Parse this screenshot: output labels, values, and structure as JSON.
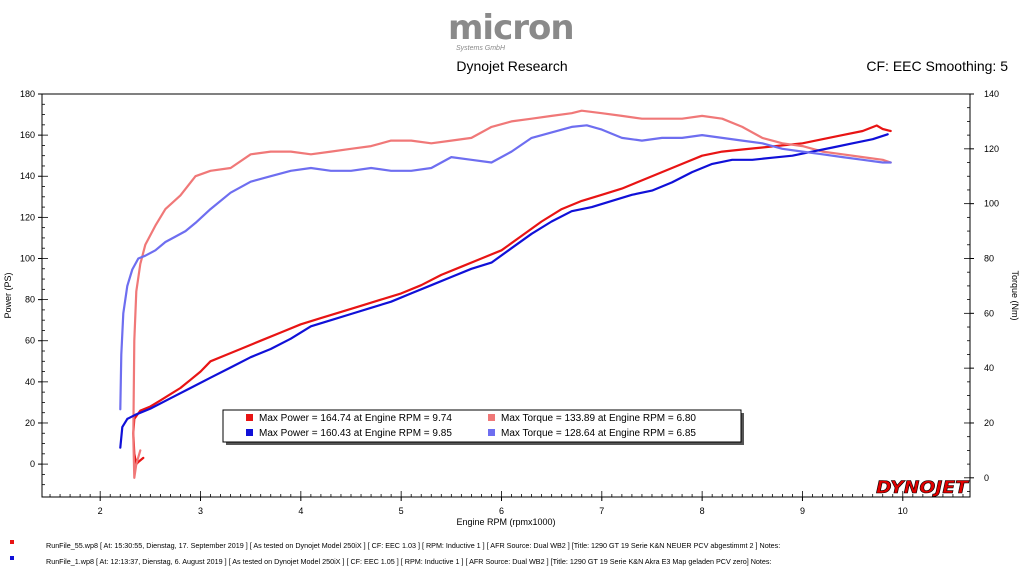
{
  "header": {
    "logo_text": "micron",
    "logo_sub": "Systems GmbH",
    "title": "Dynojet Research",
    "smoothing": "CF: EEC Smoothing: 5"
  },
  "brand": "DYNOJET",
  "colors": {
    "run1_power": "#e81414",
    "run1_torque": "#f07878",
    "run2_power": "#1010d8",
    "run2_torque": "#6e6ef0",
    "brand_red": "#e20000"
  },
  "runs": [
    {
      "color": "#e81414",
      "text": "RunFile_55.wp8  [ At: 15:30:55, Dienstag, 17. September 2019 ]  [ As tested on Dynojet Model 250iX ]  [ CF: EEC 1.03 ]  [ RPM: Inductive 1 ]  [ AFR Source: Dual WB2 ]  [Title: 1290 GT 19 Serie K&N NEUER PCV abgestimmt 2 ]  Notes:"
    },
    {
      "color": "#1010d8",
      "text": "RunFile_1.wp8  [ At: 12:13:37, Dienstag, 6. August 2019 ]  [ As tested on Dynojet Model 250iX ]  [ CF: EEC 1.05 ]  [ RPM: Inductive 1 ]  [ AFR Source: Dual WB2 ]  [Title: 1290 GT 19 Serie K&N Akra E3 Map geladen  PCV zero]  Notes:"
    }
  ],
  "chart_data": {
    "type": "line",
    "xlabel": "Engine RPM (rpmx1000)",
    "ylabel": "Power (PS)",
    "y2label": "Torque (Nm)",
    "xlim": [
      1.42,
      10.67
    ],
    "ylim": [
      -16,
      180
    ],
    "y2lim": [
      -7,
      140
    ],
    "xticks": [
      2,
      3,
      4,
      5,
      6,
      7,
      8,
      9,
      10
    ],
    "yticks": [
      0,
      20,
      40,
      60,
      80,
      100,
      120,
      140,
      160,
      180
    ],
    "y2ticks": [
      0,
      20,
      40,
      60,
      80,
      100,
      120,
      140
    ],
    "legend": [
      {
        "color": "#e81414",
        "label": "Max Power = 164.74 at Engine RPM = 9.74"
      },
      {
        "color": "#f07878",
        "label": "Max Torque = 133.89 at Engine RPM = 6.80"
      },
      {
        "color": "#1010d8",
        "label": "Max Power = 160.43 at Engine RPM = 9.85"
      },
      {
        "color": "#6e6ef0",
        "label": "Max Torque = 128.64 at Engine RPM = 6.85"
      }
    ],
    "series": [
      {
        "name": "Power run 1",
        "axis": "left",
        "color": "#e81414",
        "x": [
          2.43,
          2.38,
          2.36,
          2.34,
          2.33,
          2.34,
          2.4,
          2.5,
          2.6,
          2.7,
          2.8,
          2.9,
          3.0,
          3.1,
          3.25,
          3.4,
          3.6,
          3.8,
          4.0,
          4.2,
          4.4,
          4.6,
          4.8,
          5.0,
          5.2,
          5.4,
          5.6,
          5.8,
          6.0,
          6.2,
          6.4,
          6.6,
          6.8,
          7.0,
          7.2,
          7.4,
          7.6,
          7.8,
          8.0,
          8.2,
          8.4,
          8.6,
          8.8,
          9.0,
          9.2,
          9.4,
          9.6,
          9.74,
          9.8,
          9.88
        ],
        "y": [
          3,
          1,
          0,
          5,
          15,
          22,
          26,
          28,
          31,
          34,
          37,
          41,
          45,
          50,
          53,
          56,
          60,
          64,
          68,
          71,
          74,
          77,
          80,
          83,
          87,
          92,
          96,
          100,
          104,
          111,
          118,
          124,
          128,
          131,
          134,
          138,
          142,
          146,
          150,
          152,
          153,
          154,
          155,
          156,
          158,
          160,
          162,
          164.7,
          163,
          162
        ]
      },
      {
        "name": "Torque run 1",
        "axis": "right",
        "color": "#f07878",
        "x": [
          2.4,
          2.36,
          2.34,
          2.33,
          2.34,
          2.36,
          2.4,
          2.45,
          2.55,
          2.65,
          2.8,
          2.95,
          3.1,
          3.3,
          3.5,
          3.7,
          3.9,
          4.1,
          4.3,
          4.5,
          4.7,
          4.9,
          5.1,
          5.3,
          5.5,
          5.7,
          5.9,
          6.1,
          6.3,
          6.5,
          6.7,
          6.8,
          7.0,
          7.2,
          7.4,
          7.6,
          7.8,
          8.0,
          8.2,
          8.4,
          8.6,
          8.8,
          9.0,
          9.2,
          9.4,
          9.6,
          9.8,
          9.88
        ],
        "y": [
          10,
          5,
          0,
          15,
          50,
          68,
          78,
          85,
          92,
          98,
          103,
          110,
          112,
          113,
          118,
          119,
          119,
          118,
          119,
          120,
          121,
          123,
          123,
          122,
          123,
          124,
          128,
          130,
          131,
          132,
          133,
          133.9,
          133,
          132,
          131,
          131,
          131,
          132,
          131,
          128,
          124,
          122,
          121,
          119,
          118,
          117,
          116,
          115
        ]
      },
      {
        "name": "Power run 2",
        "axis": "left",
        "color": "#1010d8",
        "x": [
          2.2,
          2.22,
          2.27,
          2.35,
          2.5,
          2.7,
          2.9,
          3.1,
          3.3,
          3.5,
          3.7,
          3.9,
          4.1,
          4.3,
          4.5,
          4.7,
          4.9,
          5.1,
          5.3,
          5.5,
          5.7,
          5.9,
          6.1,
          6.3,
          6.5,
          6.7,
          6.9,
          7.1,
          7.3,
          7.5,
          7.7,
          7.9,
          8.1,
          8.3,
          8.5,
          8.7,
          8.9,
          9.1,
          9.3,
          9.5,
          9.7,
          9.85
        ],
        "y": [
          8,
          18,
          22,
          24,
          27,
          32,
          37,
          42,
          47,
          52,
          56,
          61,
          67,
          70,
          73,
          76,
          79,
          83,
          87,
          91,
          95,
          98,
          105,
          112,
          118,
          123,
          125,
          128,
          131,
          133,
          137,
          142,
          146,
          148,
          148,
          149,
          150,
          152,
          154,
          156,
          158,
          160.4
        ]
      },
      {
        "name": "Torque run 2",
        "axis": "right",
        "color": "#6e6ef0",
        "x": [
          2.2,
          2.21,
          2.23,
          2.27,
          2.32,
          2.38,
          2.45,
          2.55,
          2.65,
          2.75,
          2.85,
          2.95,
          3.1,
          3.3,
          3.5,
          3.7,
          3.9,
          4.1,
          4.3,
          4.5,
          4.7,
          4.9,
          5.1,
          5.3,
          5.5,
          5.7,
          5.9,
          6.1,
          6.3,
          6.5,
          6.7,
          6.85,
          7.0,
          7.2,
          7.4,
          7.6,
          7.8,
          8.0,
          8.2,
          8.4,
          8.6,
          8.8,
          9.0,
          9.2,
          9.4,
          9.6,
          9.8,
          9.88
        ],
        "y": [
          25,
          45,
          60,
          70,
          76,
          80,
          81,
          83,
          86,
          88,
          90,
          93,
          98,
          104,
          108,
          110,
          112,
          113,
          112,
          112,
          113,
          112,
          112,
          113,
          117,
          116,
          115,
          119,
          124,
          126,
          128,
          128.6,
          127,
          124,
          123,
          124,
          124,
          125,
          124,
          123,
          122,
          120,
          119,
          118,
          117,
          116,
          115,
          115
        ]
      }
    ]
  }
}
